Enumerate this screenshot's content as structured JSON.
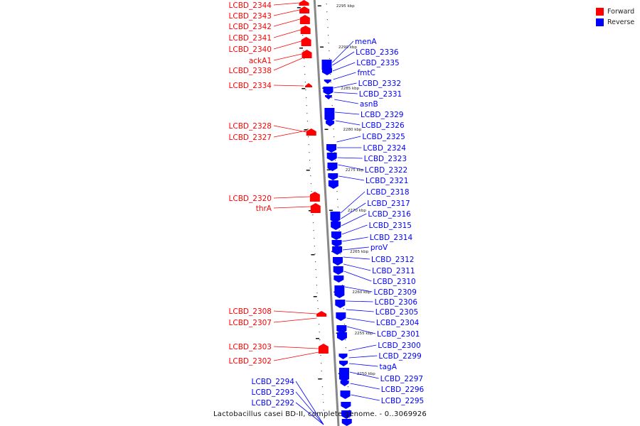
{
  "legend": [
    {
      "label": "Forward",
      "color": "#ff0000"
    },
    {
      "label": "Reverse",
      "color": "#0000ff"
    }
  ],
  "caption": "Lactobacillus casei BD-II, complete genome. - 0..3069926",
  "colors": {
    "forward": "#ff0000",
    "reverse": "#0000ff",
    "backbone": "#888888"
  },
  "scale_ticks": [
    "2295 kbp",
    "2290 kbp",
    "2285 kbp",
    "2280 kbp",
    "2275 kbp",
    "2270 kbp",
    "2265 kbp",
    "2260 kbp",
    "2255 kbp",
    "2250 kbp"
  ],
  "forward_labels": [
    "LCBD_2344",
    "LCBD_2343",
    "LCBD_2342",
    "LCBD_2341",
    "LCBD_2340",
    "ackA1",
    "LCBD_2338",
    "LCBD_2334",
    "LCBD_2328",
    "LCBD_2327",
    "LCBD_2320",
    "thrA",
    "LCBD_2308",
    "LCBD_2307",
    "LCBD_2303",
    "LCBD_2302"
  ],
  "reverse_labels_right": [
    "menA",
    "LCBD_2336",
    "LCBD_2335",
    "fmtC",
    "LCBD_2332",
    "LCBD_2331",
    "asnB",
    "LCBD_2329",
    "LCBD_2326",
    "LCBD_2325",
    "LCBD_2324",
    "LCBD_2323",
    "LCBD_2322",
    "LCBD_2321",
    "LCBD_2318",
    "LCBD_2317",
    "LCBD_2316",
    "LCBD_2315",
    "LCBD_2314",
    "proV",
    "LCBD_2312",
    "LCBD_2311",
    "LCBD_2310",
    "LCBD_2309",
    "LCBD_2306",
    "LCBD_2305",
    "LCBD_2304",
    "LCBD_2301",
    "LCBD_2300",
    "LCBD_2299",
    "tagA",
    "LCBD_2297",
    "LCBD_2296",
    "LCBD_2295"
  ],
  "reverse_labels_left": [
    "LCBD_2294",
    "LCBD_2293",
    "LCBD_2292"
  ]
}
